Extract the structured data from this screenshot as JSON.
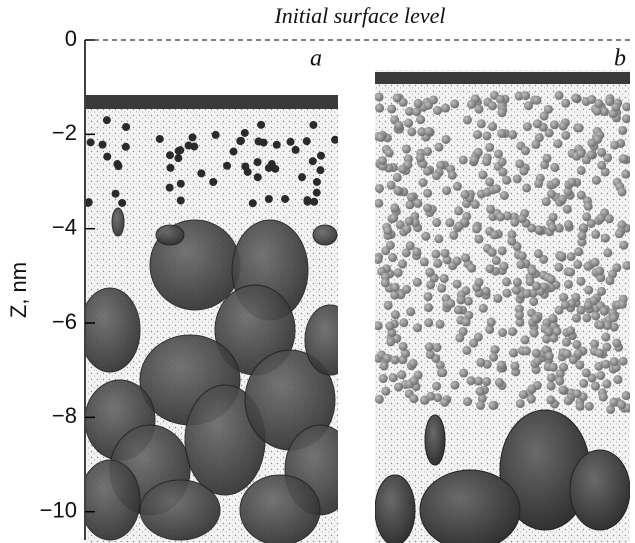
{
  "chart_data": {
    "type": "snapshot",
    "title": "Initial surface level",
    "y_label": "Z, nm",
    "panels": [
      "a",
      "b"
    ],
    "ylim": [
      -10.6,
      0
    ],
    "yticks": [
      0,
      {
        "value": -2,
        "label": "−2"
      },
      {
        "value": -4,
        "label": "−4"
      },
      {
        "value": -6,
        "label": "−6"
      },
      {
        "value": -8,
        "label": "−8"
      },
      {
        "value": -10,
        "label": "−10"
      }
    ]
  }
}
